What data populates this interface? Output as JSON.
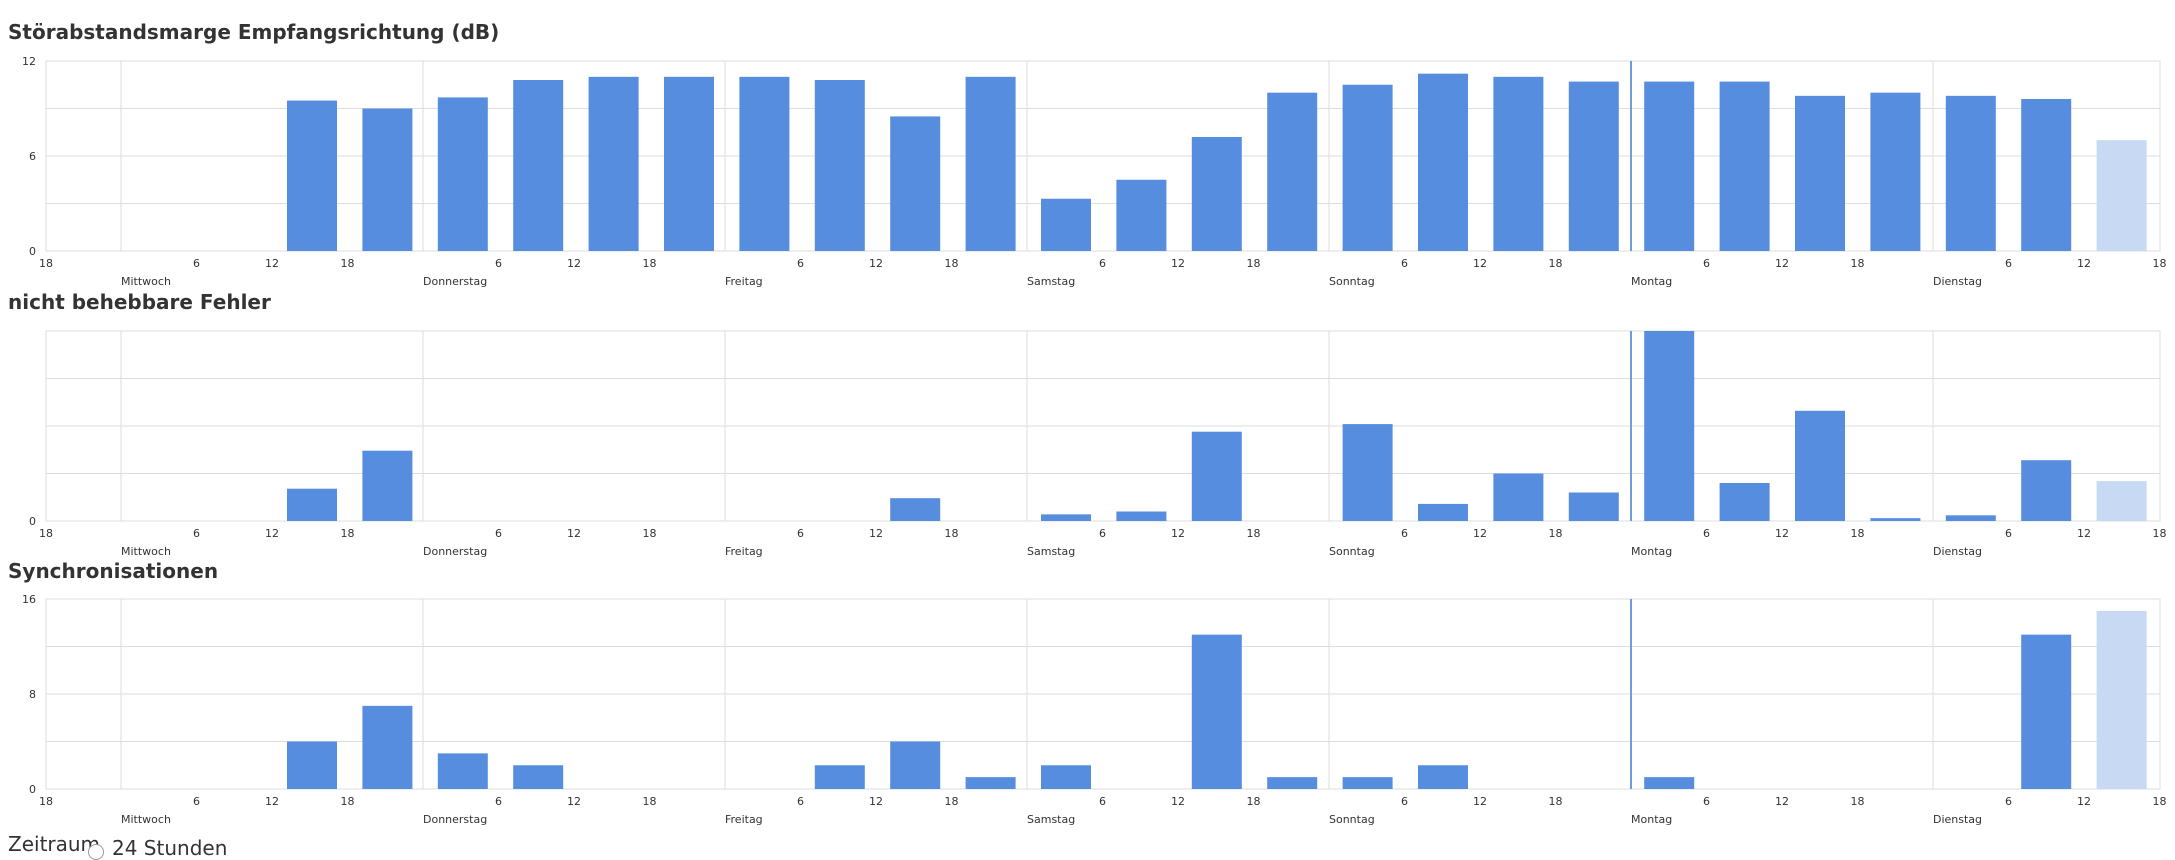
{
  "colors": {
    "bar": "#568ddf",
    "bar_pending": "#c8daf3",
    "grid": "#dddddd",
    "marker": "#6f9be0"
  },
  "footer": {
    "label": "Zeitraum",
    "option": "24 Stunden"
  },
  "chart_data": [
    {
      "type": "bar",
      "title": "Störabstandsmarge Empfangsrichtung (dB)",
      "ylim": [
        0,
        12
      ],
      "yticks": [
        "0",
        "6",
        "12"
      ],
      "day_labels": [
        "Mittwoch",
        "Donnerstag",
        "Freitag",
        "Samstag",
        "Sonntag",
        "Montag",
        "Dienstag"
      ],
      "hour_labels": [
        "6",
        "12",
        "18"
      ],
      "first_tick": "18",
      "values": [
        null,
        null,
        9.5,
        9.0,
        9.7,
        10.8,
        11.0,
        11.0,
        11.0,
        10.8,
        8.5,
        11.0,
        3.3,
        4.5,
        7.2,
        10.0,
        10.5,
        11.2,
        11.0,
        10.7,
        10.7,
        10.7,
        9.8,
        10.0,
        9.8,
        9.6,
        7.0
      ],
      "pending_last": true
    },
    {
      "type": "bar",
      "title": "nicht behebbare Fehler",
      "ylim": [
        0,
        100
      ],
      "yticks": [
        "0"
      ],
      "day_labels": [
        "Mittwoch",
        "Donnerstag",
        "Freitag",
        "Samstag",
        "Sonntag",
        "Montag",
        "Dienstag"
      ],
      "hour_labels": [
        "6",
        "12",
        "18"
      ],
      "first_tick": "18",
      "values": [
        null,
        null,
        17,
        37,
        null,
        null,
        null,
        null,
        null,
        null,
        12,
        null,
        3.5,
        5,
        47,
        null,
        51,
        9,
        25,
        15,
        100,
        20,
        58,
        1.5,
        3,
        32,
        21
      ],
      "pending_last": true
    },
    {
      "type": "bar",
      "title": "Synchronisationen",
      "ylim": [
        0,
        16
      ],
      "yticks": [
        "0",
        "8",
        "16"
      ],
      "day_labels": [
        "Mittwoch",
        "Donnerstag",
        "Freitag",
        "Samstag",
        "Sonntag",
        "Montag",
        "Dienstag"
      ],
      "hour_labels": [
        "6",
        "12",
        "18"
      ],
      "first_tick": "18",
      "values": [
        null,
        null,
        4,
        7,
        3,
        2,
        null,
        null,
        null,
        2,
        4,
        1,
        2,
        null,
        13,
        1,
        1,
        2,
        null,
        null,
        1,
        null,
        null,
        null,
        null,
        13,
        15
      ],
      "pending_last": true
    }
  ]
}
